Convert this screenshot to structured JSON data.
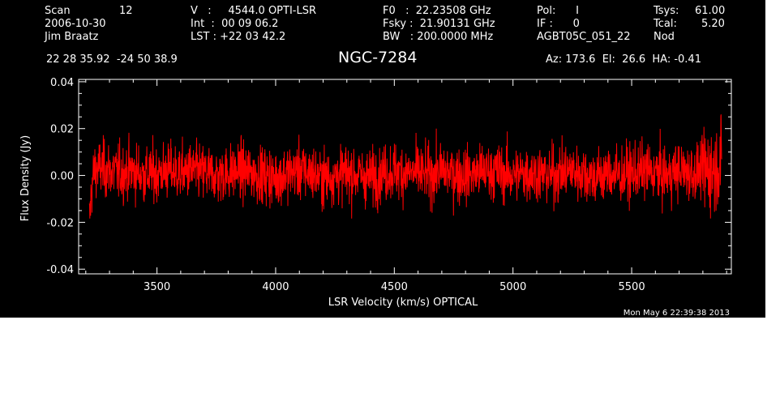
{
  "header": {
    "scan": "Scan",
    "scan_num": "12",
    "date": "2006-10-30",
    "observer": "Jim Braatz",
    "v_line": "V   :     4544.0 OPTI-LSR",
    "int_line": "Int  :  00 09 06.2",
    "lst_line": "LST : +22 03 42.2",
    "f0_line": "F0   :  22.23508 GHz",
    "fsky_line": "Fsky :  21.90131 GHz",
    "bw_line": "BW   : 200.0000 MHz",
    "pol_line": "Pol:      I",
    "if_line": "IF :      0",
    "project": "AGBT05C_051_22",
    "tsys_label": "Tsys:",
    "tsys_value": "61.00",
    "tcal_label": "Tcal:",
    "tcal_value": "5.20",
    "mode": "Nod",
    "coords": "22 28 35.92  -24 50 38.9",
    "source": "NGC-7284",
    "azelha": "Az: 173.6  El:  26.6  HA: -0.41"
  },
  "footer": {
    "timestamp": "Mon May  6 22:39:38 2013"
  },
  "colors": {
    "background": "#000000",
    "axes": "#ffffff",
    "trace": "#ff0000"
  },
  "chart_data": {
    "type": "line",
    "xlabel": "LSR Velocity (km/s) OPTICAL",
    "ylabel": "Flux Density (Jy)",
    "xlim": [
      3170,
      5920
    ],
    "ylim": [
      -0.042,
      0.041
    ],
    "xticks": [
      3500,
      4000,
      4500,
      5000,
      5500
    ],
    "xtick_labels": [
      "3500",
      "4000",
      "4500",
      "5000",
      "5500"
    ],
    "yticks": [
      -0.04,
      -0.02,
      0.0,
      0.02,
      0.04
    ],
    "ytick_labels": [
      "-0.04",
      "-0.02",
      "0.00",
      "0.02",
      "0.04"
    ],
    "grid": false,
    "series": [
      {
        "x_start": 3215,
        "x_end": 5880,
        "x": [
          3215,
          3225,
          3235,
          3260,
          3300,
          3350,
          3400,
          3450,
          3500,
          3550,
          3600,
          3650,
          3700,
          3750,
          3800,
          3850,
          3900,
          3950,
          4000,
          4050,
          4100,
          4150,
          4200,
          4250,
          4300,
          4350,
          4400,
          4450,
          4500,
          4550,
          4600,
          4650,
          4700,
          4750,
          4800,
          4850,
          4900,
          4950,
          5000,
          5050,
          5100,
          5150,
          5200,
          5250,
          5300,
          5350,
          5400,
          5450,
          5500,
          5550,
          5600,
          5650,
          5700,
          5750,
          5800,
          5850,
          5880
        ],
        "y": [
          -0.02,
          -0.005,
          0.002,
          0.003,
          0.002,
          0.001,
          0.002,
          0.0,
          0.001,
          0.002,
          0.001,
          0.002,
          0.001,
          0.0,
          0.001,
          0.002,
          0.001,
          0.0,
          -0.001,
          0.001,
          0.002,
          0.001,
          -0.001,
          0.0,
          0.001,
          0.0,
          -0.001,
          0.001,
          0.002,
          0.001,
          0.001,
          0.0,
          0.002,
          0.001,
          0.0,
          0.001,
          0.002,
          0.001,
          0.0,
          0.001,
          0.001,
          0.0,
          0.001,
          0.002,
          0.001,
          -0.001,
          0.001,
          0.0,
          0.001,
          0.002,
          0.001,
          0.0,
          0.002,
          0.001,
          0.002,
          0.003,
          0.006
        ],
        "noise_rms": 0.006
      }
    ]
  }
}
